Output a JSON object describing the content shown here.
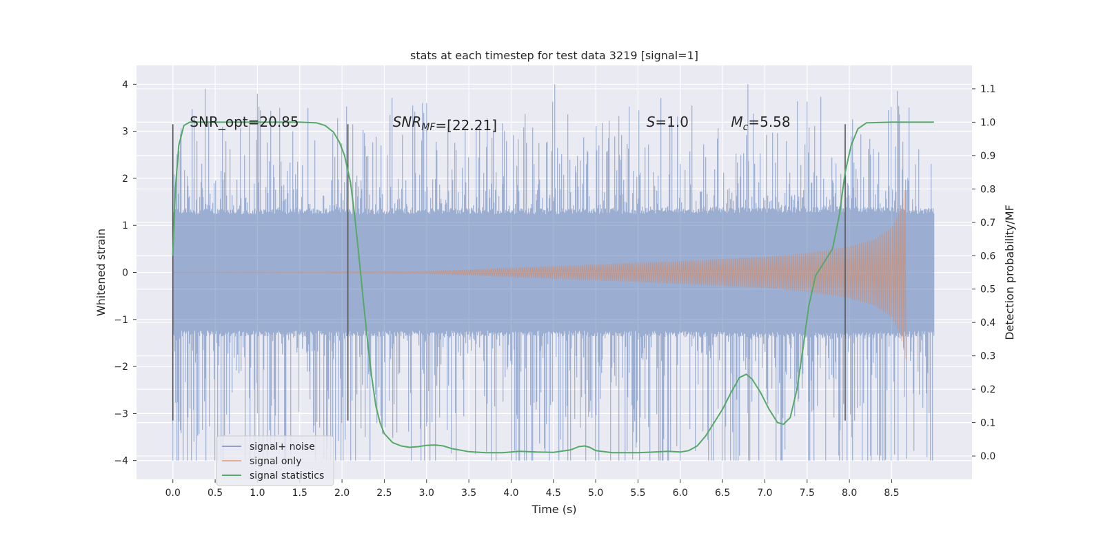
{
  "chart_data": {
    "type": "line",
    "title": "stats at each timestep for test data 3219 [signal=1]",
    "xlabel": "Time (s)",
    "ylabel": "Whitened strain",
    "y2label": "Detection probability/MF",
    "xlim": [
      -0.43,
      9.45
    ],
    "ylim": [
      -4.4,
      4.4
    ],
    "y2lim": [
      -0.07,
      1.17
    ],
    "x_ticks": [
      0.0,
      0.5,
      1.0,
      1.5,
      2.0,
      2.5,
      3.0,
      3.5,
      4.0,
      4.5,
      5.0,
      5.5,
      6.0,
      6.5,
      7.0,
      7.5,
      8.0,
      8.5
    ],
    "x_tick_labels": [
      "0.0",
      "0.5",
      "1.0",
      "1.5",
      "2.0",
      "2.5",
      "3.0",
      "3.5",
      "4.0",
      "4.5",
      "5.0",
      "5.5",
      "6.0",
      "6.5",
      "7.0",
      "7.5",
      "8.0",
      "8.5"
    ],
    "y_ticks": [
      4,
      3,
      2,
      1,
      0,
      -1,
      -2,
      -3,
      -4
    ],
    "y_tick_labels": [
      "4",
      "3",
      "2",
      "1",
      "0",
      "−1",
      "−2",
      "−3",
      "−4"
    ],
    "y2_ticks": [
      1.1,
      1.0,
      0.9,
      0.8,
      0.7,
      0.6,
      0.5,
      0.4,
      0.3,
      0.2,
      0.1,
      0.0
    ],
    "y2_tick_labels": [
      "1.1",
      "1.0",
      "0.9",
      "0.8",
      "0.7",
      "0.6",
      "0.5",
      "0.4",
      "0.3",
      "0.2",
      "0.1",
      "0.0"
    ],
    "grid": true,
    "legend_position": "lower-left",
    "colors": {
      "background": "#eaeaf2",
      "grid": "#ffffff",
      "noise": "#4c72b0",
      "signal": "#dd8452",
      "stats": "#55a868",
      "marker": "#555555"
    },
    "annotations": [
      {
        "id": "snr-opt",
        "text": "SNR_opt=20.85",
        "x": 0.2,
        "y": 3.1
      },
      {
        "id": "snr-mf",
        "text": "SNR",
        "sub": "MF",
        "tail": "=[22.21]",
        "x": 2.6,
        "y": 3.1
      },
      {
        "id": "s-value",
        "text": "S",
        "tail": "=1.0",
        "x": 5.6,
        "y": 3.1
      },
      {
        "id": "mc-value",
        "text": "M",
        "sub": "c",
        "tail": "=5.58",
        "x": 6.6,
        "y": 3.1
      }
    ],
    "vertical_markers": [
      {
        "x": 0.0,
        "y_low": -3.15,
        "y_high": 3.15
      },
      {
        "x": 2.07,
        "y_low": -3.15,
        "y_high": 3.15
      },
      {
        "x": 7.95,
        "y_low": -3.15,
        "y_high": 3.15
      }
    ],
    "series": [
      {
        "name": "signal+ noise",
        "kind": "noise",
        "x_range": [
          0.0,
          9.0
        ],
        "envelope": [
          {
            "t": 0.0,
            "amp": 1.3
          },
          {
            "t": 1.0,
            "amp": 1.3
          },
          {
            "t": 5.0,
            "amp": 1.3
          },
          {
            "t": 8.0,
            "amp": 1.35
          },
          {
            "t": 9.0,
            "amp": 1.3
          }
        ],
        "peak_max": 4.0,
        "peak_min": -4.0
      },
      {
        "name": "signal only",
        "kind": "chirp",
        "x_range": [
          0.0,
          8.67
        ],
        "envelope": [
          {
            "t": 0.0,
            "amp": 0.0
          },
          {
            "t": 3.0,
            "amp": 0.02
          },
          {
            "t": 4.0,
            "amp": 0.1
          },
          {
            "t": 5.0,
            "amp": 0.17
          },
          {
            "t": 6.0,
            "amp": 0.24
          },
          {
            "t": 7.0,
            "amp": 0.33
          },
          {
            "t": 7.5,
            "amp": 0.41
          },
          {
            "t": 8.0,
            "amp": 0.55
          },
          {
            "t": 8.3,
            "amp": 0.7
          },
          {
            "t": 8.5,
            "amp": 0.95
          },
          {
            "t": 8.6,
            "amp": 1.3
          },
          {
            "t": 8.67,
            "amp": 1.85
          }
        ]
      },
      {
        "name": "signal statistics",
        "kind": "stats",
        "axis": "y2",
        "points": [
          {
            "x": 0.0,
            "y": 0.6
          },
          {
            "x": 0.03,
            "y": 0.8
          },
          {
            "x": 0.07,
            "y": 0.93
          },
          {
            "x": 0.13,
            "y": 0.99
          },
          {
            "x": 0.2,
            "y": 1.0
          },
          {
            "x": 0.5,
            "y": 1.0
          },
          {
            "x": 1.0,
            "y": 1.0
          },
          {
            "x": 1.5,
            "y": 1.0
          },
          {
            "x": 1.7,
            "y": 0.998
          },
          {
            "x": 1.8,
            "y": 0.99
          },
          {
            "x": 1.9,
            "y": 0.97
          },
          {
            "x": 1.97,
            "y": 0.94
          },
          {
            "x": 2.03,
            "y": 0.9
          },
          {
            "x": 2.1,
            "y": 0.82
          },
          {
            "x": 2.15,
            "y": 0.72
          },
          {
            "x": 2.2,
            "y": 0.6
          },
          {
            "x": 2.25,
            "y": 0.47
          },
          {
            "x": 2.3,
            "y": 0.35
          },
          {
            "x": 2.35,
            "y": 0.24
          },
          {
            "x": 2.4,
            "y": 0.15
          },
          {
            "x": 2.45,
            "y": 0.1
          },
          {
            "x": 2.5,
            "y": 0.067
          },
          {
            "x": 2.6,
            "y": 0.04
          },
          {
            "x": 2.7,
            "y": 0.03
          },
          {
            "x": 2.8,
            "y": 0.026
          },
          {
            "x": 2.9,
            "y": 0.028
          },
          {
            "x": 3.0,
            "y": 0.032
          },
          {
            "x": 3.1,
            "y": 0.033
          },
          {
            "x": 3.2,
            "y": 0.03
          },
          {
            "x": 3.3,
            "y": 0.022
          },
          {
            "x": 3.5,
            "y": 0.013
          },
          {
            "x": 3.7,
            "y": 0.01
          },
          {
            "x": 3.9,
            "y": 0.01
          },
          {
            "x": 4.1,
            "y": 0.014
          },
          {
            "x": 4.3,
            "y": 0.012
          },
          {
            "x": 4.5,
            "y": 0.011
          },
          {
            "x": 4.7,
            "y": 0.018
          },
          {
            "x": 4.8,
            "y": 0.028
          },
          {
            "x": 4.87,
            "y": 0.03
          },
          {
            "x": 4.93,
            "y": 0.026
          },
          {
            "x": 5.0,
            "y": 0.016
          },
          {
            "x": 5.2,
            "y": 0.01
          },
          {
            "x": 5.5,
            "y": 0.01
          },
          {
            "x": 5.7,
            "y": 0.012
          },
          {
            "x": 5.85,
            "y": 0.014
          },
          {
            "x": 6.0,
            "y": 0.012
          },
          {
            "x": 6.1,
            "y": 0.016
          },
          {
            "x": 6.2,
            "y": 0.03
          },
          {
            "x": 6.3,
            "y": 0.06
          },
          {
            "x": 6.4,
            "y": 0.1
          },
          {
            "x": 6.5,
            "y": 0.14
          },
          {
            "x": 6.6,
            "y": 0.19
          },
          {
            "x": 6.7,
            "y": 0.235
          },
          {
            "x": 6.78,
            "y": 0.245
          },
          {
            "x": 6.85,
            "y": 0.23
          },
          {
            "x": 6.95,
            "y": 0.19
          },
          {
            "x": 7.05,
            "y": 0.14
          },
          {
            "x": 7.15,
            "y": 0.1
          },
          {
            "x": 7.22,
            "y": 0.095
          },
          {
            "x": 7.3,
            "y": 0.115
          },
          {
            "x": 7.38,
            "y": 0.2
          },
          {
            "x": 7.45,
            "y": 0.32
          },
          {
            "x": 7.52,
            "y": 0.45
          },
          {
            "x": 7.6,
            "y": 0.54
          },
          {
            "x": 7.7,
            "y": 0.58
          },
          {
            "x": 7.8,
            "y": 0.62
          },
          {
            "x": 7.88,
            "y": 0.72
          },
          {
            "x": 7.95,
            "y": 0.85
          },
          {
            "x": 8.02,
            "y": 0.93
          },
          {
            "x": 8.1,
            "y": 0.98
          },
          {
            "x": 8.2,
            "y": 0.998
          },
          {
            "x": 8.5,
            "y": 1.0
          },
          {
            "x": 9.0,
            "y": 1.0
          }
        ]
      }
    ]
  }
}
